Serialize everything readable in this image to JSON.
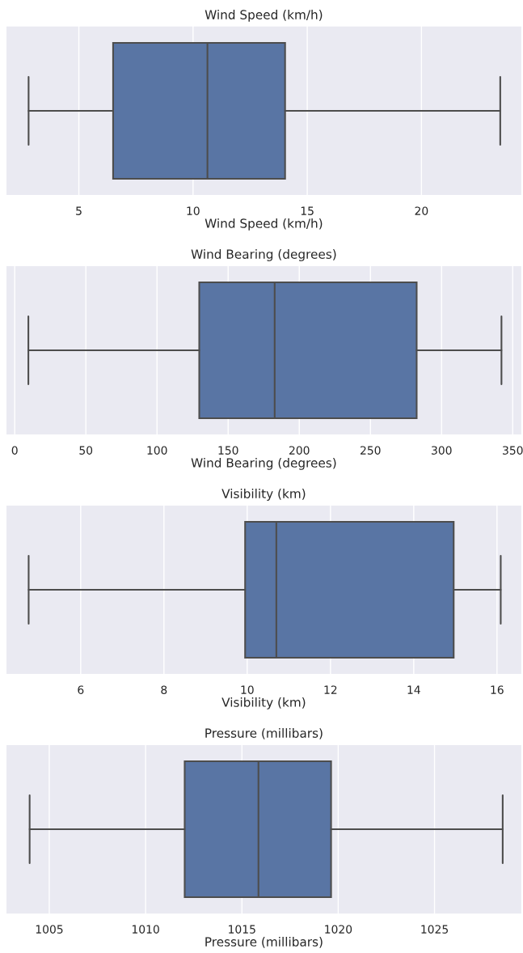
{
  "chart_data": [
    {
      "type": "box",
      "orientation": "horizontal",
      "title": "Wind Speed (km/h)",
      "xlabel": "Wind Speed (km/h)",
      "categories": [
        null
      ],
      "color": "#5975a4",
      "grid": "x",
      "xlim": [
        1.8,
        24.4
      ],
      "xticks": [
        5,
        10,
        15,
        20
      ],
      "boxes": [
        {
          "low": 2.8,
          "q1": 6.5,
          "median": 10.63,
          "q3": 14.03,
          "high": 23.45
        }
      ]
    },
    {
      "type": "box",
      "orientation": "horizontal",
      "title": "Wind Bearing (degrees)",
      "xlabel": "Wind Bearing (degrees)",
      "categories": [
        null
      ],
      "color": "#5975a4",
      "grid": "x",
      "xlim": [
        -6.3,
        356.5
      ],
      "xticks": [
        0,
        50,
        100,
        150,
        200,
        250,
        300,
        350
      ],
      "boxes": [
        {
          "low": 9.6,
          "q1": 129.7,
          "median": 182.7,
          "q3": 282.5,
          "high": 342.1
        }
      ]
    },
    {
      "type": "box",
      "orientation": "horizontal",
      "title": "Visibility (km)",
      "xlabel": "Visibility (km)",
      "categories": [
        null
      ],
      "color": "#5975a4",
      "grid": "x",
      "xlim": [
        4.2,
        16.6
      ],
      "xticks": [
        6,
        8,
        10,
        12,
        14,
        16
      ],
      "boxes": [
        {
          "low": 4.75,
          "q1": 9.95,
          "median": 10.7,
          "q3": 14.96,
          "high": 16.09
        }
      ]
    },
    {
      "type": "box",
      "orientation": "horizontal",
      "title": "Pressure (millibars)",
      "xlabel": "Pressure (millibars)",
      "categories": [
        null
      ],
      "color": "#5975a4",
      "grid": "x",
      "xlim": [
        1002.74,
        1029.54
      ],
      "xticks": [
        1005,
        1010,
        1015,
        1020,
        1025
      ],
      "boxes": [
        {
          "low": 1003.98,
          "q1": 1012.03,
          "median": 1015.86,
          "q3": 1019.63,
          "high": 1028.54
        }
      ]
    }
  ]
}
